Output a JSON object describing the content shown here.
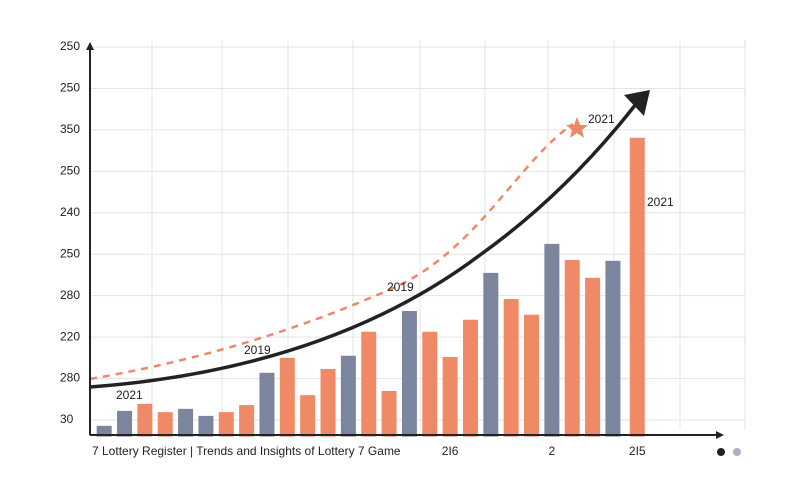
{
  "chart_data": {
    "type": "bar",
    "caption": "7 Lottery Register |  Trends and Insights of Lottery 7 Game",
    "categories": [
      null,
      null,
      null,
      null,
      null,
      null,
      null,
      null,
      null,
      null,
      null,
      null,
      null,
      null,
      null,
      null,
      null,
      "2I6",
      null,
      null,
      null,
      null,
      "2",
      null,
      null,
      null,
      "2I5"
    ],
    "series": [
      {
        "color": "#7b869e",
        "values": [
          0.86,
          1.22,
          null,
          null,
          1.27,
          1.1,
          null,
          null,
          2.14,
          null,
          null,
          null,
          2.55,
          null,
          null,
          3.63,
          null,
          null,
          null,
          4.55,
          null,
          null,
          5.25,
          null,
          null,
          4.84,
          null
        ]
      },
      {
        "color": "#f08a66",
        "values": [
          null,
          null,
          1.39,
          1.19,
          null,
          null,
          1.19,
          1.36,
          null,
          2.5,
          1.6,
          2.23,
          null,
          3.13,
          1.7,
          null,
          3.13,
          2.52,
          3.42,
          null,
          3.92,
          3.54,
          null,
          4.86,
          4.43,
          null,
          7.81
        ]
      }
    ],
    "ylim": [
      0.6,
      10
    ],
    "yticks": [
      {
        "value": 1,
        "label": "30"
      },
      {
        "value": 2,
        "label": "280"
      },
      {
        "value": 3,
        "label": "220"
      },
      {
        "value": 4,
        "label": "280"
      },
      {
        "value": 5,
        "label": "250"
      },
      {
        "value": 6,
        "label": "240"
      },
      {
        "value": 7,
        "label": "250"
      },
      {
        "value": 8,
        "label": "350"
      },
      {
        "value": 9,
        "label": "250"
      },
      {
        "value": 10,
        "label": "250"
      }
    ],
    "grid": true,
    "annotations": [
      "2021",
      "2019",
      "2019",
      "2021",
      "2021"
    ]
  }
}
